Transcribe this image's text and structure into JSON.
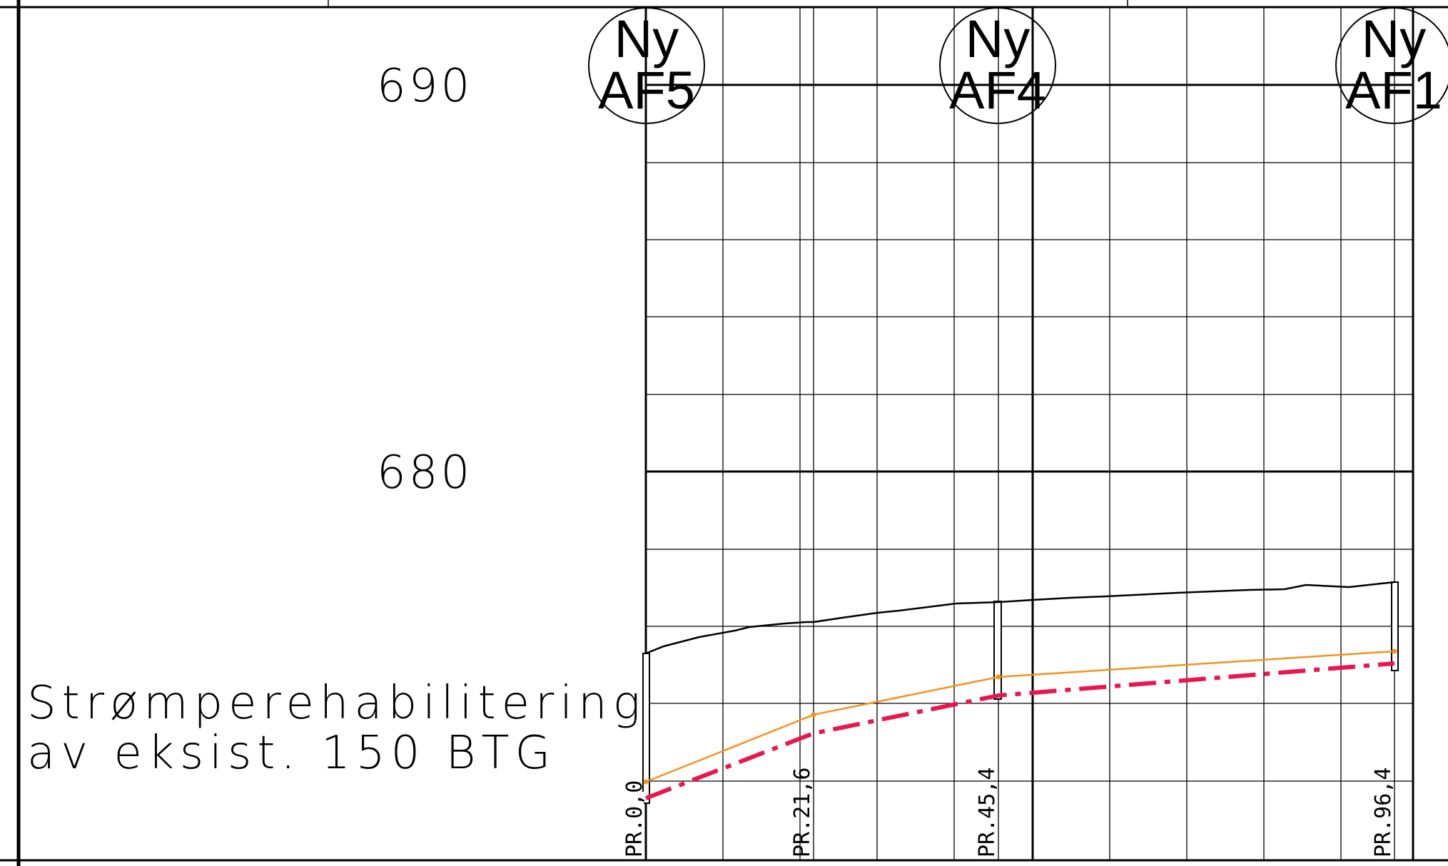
{
  "profile": {
    "elevation_labels": [
      "690",
      "680"
    ],
    "description": {
      "line1": "Strømperehabilitering",
      "line2": "av eksist. 150 BTG"
    },
    "manholes": [
      {
        "line1": "Ny",
        "line2": "AF5"
      },
      {
        "line1": "Ny",
        "line2": "AF4"
      },
      {
        "line1": "Ny",
        "line2": "AF1"
      }
    ],
    "stations": [
      "PR.0,0",
      "PR.21,6",
      "PR.45,4",
      "PR.96,4"
    ]
  },
  "colors": {
    "frame": "#000000",
    "terrain": "#000000",
    "new_pipe": "#f5921e",
    "existing_pipe_dashed": "#e8174f"
  }
}
